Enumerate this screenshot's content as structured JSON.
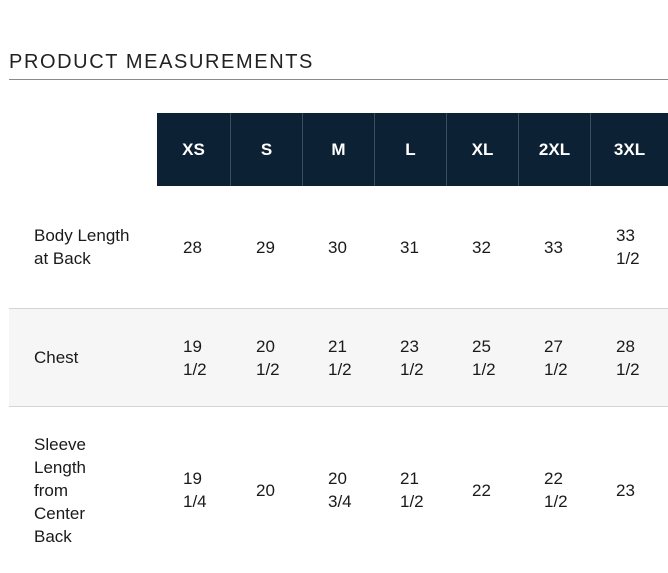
{
  "title": "PRODUCT MEASUREMENTS",
  "sizes": [
    "XS",
    "S",
    "M",
    "L",
    "XL",
    "2XL",
    "3XL"
  ],
  "rows": [
    {
      "label": "Body Length at Back",
      "values": [
        "28",
        "29",
        "30",
        "31",
        "32",
        "33",
        "33 1/2"
      ]
    },
    {
      "label": "Chest",
      "values": [
        "19 1/2",
        "20 1/2",
        "21 1/2",
        "23 1/2",
        "25 1/2",
        "27 1/2",
        "28 1/2"
      ]
    },
    {
      "label": "Sleeve Length from Center Back",
      "values": [
        "19 1/4",
        "20",
        "20 3/4",
        "21 1/2",
        "22",
        "22 1/2",
        "23"
      ]
    }
  ],
  "colors": {
    "header_bg": "#0c2133",
    "header_text": "#ffffff",
    "shaded_row": "#f6f6f6"
  }
}
